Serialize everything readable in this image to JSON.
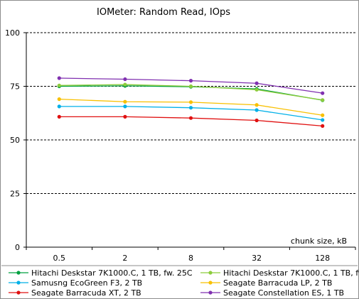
{
  "chart_data": {
    "type": "line",
    "title": "IOMeter: Random  Read, IOps",
    "xlabel": "chunk size, kB",
    "ylabel": "",
    "categories": [
      "0.5",
      "2",
      "8",
      "32",
      "128"
    ],
    "ylim": [
      0,
      100
    ],
    "yticks": [
      "0",
      "25",
      "50",
      "75",
      "100"
    ],
    "grid": "horizontal dashed",
    "legend_position": "bottom",
    "series": [
      {
        "name": "Hitachi Deskstar 7K1000.C, 1 TB, fw. 25C",
        "color": "#00a040",
        "values": [
          75.0,
          75.2,
          74.8,
          73.8,
          68.5
        ]
      },
      {
        "name": "Hitachi Deskstar 7K1000.C, 1 TB, fw. 3EA",
        "color": "#8ccc3c",
        "values": [
          75.4,
          75.8,
          75.0,
          73.4,
          68.6
        ]
      },
      {
        "name": "Samusng EcoGreen F3, 2 TB",
        "color": "#00b0e8",
        "values": [
          65.6,
          65.6,
          65.0,
          63.9,
          59.3
        ]
      },
      {
        "name": "Seagate Barracuda LP, 2 TB",
        "color": "#f8c000",
        "values": [
          69.0,
          67.8,
          67.6,
          66.3,
          61.5
        ]
      },
      {
        "name": "Seagate Barracuda XT, 2 TB",
        "color": "#e01010",
        "values": [
          60.8,
          60.8,
          60.2,
          59.1,
          56.5
        ]
      },
      {
        "name": "Seagate Constellation ES, 1 TB",
        "color": "#8030b0",
        "values": [
          78.8,
          78.3,
          77.6,
          76.4,
          71.8
        ]
      }
    ]
  }
}
